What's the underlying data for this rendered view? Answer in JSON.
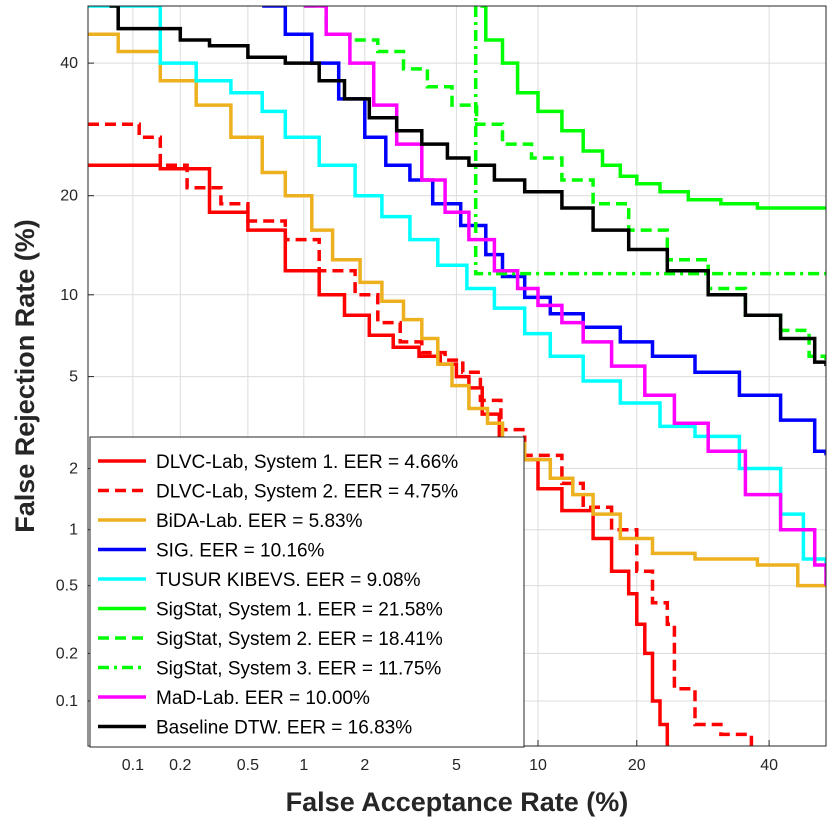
{
  "chart_data": {
    "type": "line",
    "title": "",
    "xlabel": "False Acceptance Rate (%)",
    "ylabel": "False Rejection Rate (%)",
    "xscale": "probit",
    "yscale": "probit",
    "xlim": [
      0.05,
      50
    ],
    "ylim": [
      0.05,
      50
    ],
    "x_ticks": [
      0.1,
      0.2,
      0.5,
      1,
      2,
      5,
      10,
      20,
      40
    ],
    "y_ticks": [
      0.1,
      0.2,
      0.5,
      1,
      2,
      5,
      10,
      20,
      40
    ],
    "x_tick_labels": [
      "0.1",
      "0.2",
      "0.5",
      "1",
      "2",
      "5",
      "10",
      "20",
      "40"
    ],
    "y_tick_labels": [
      "0.1",
      "0.2",
      "0.5",
      "1",
      "2",
      "5",
      "10",
      "20",
      "40"
    ],
    "grid": true,
    "legend_position": "bottom-left",
    "series": [
      {
        "name": "DLVC-Lab, System 1. EER = 4.66%",
        "color": "#ff0000",
        "dash": "solid",
        "x": [
          0.05,
          0.08,
          0.15,
          0.3,
          0.5,
          0.8,
          1.2,
          1.6,
          2.1,
          2.7,
          3.5,
          4.3,
          5.0,
          5.6,
          6.3,
          7.3,
          8.6,
          10,
          12,
          15,
          17,
          19,
          20,
          21,
          22,
          23,
          24
        ],
        "y": [
          24,
          24,
          23.5,
          18,
          16,
          12,
          10,
          8.5,
          7.2,
          6.5,
          6.0,
          5.6,
          5.0,
          4.5,
          3.5,
          2.7,
          2.2,
          1.6,
          1.25,
          0.9,
          0.6,
          0.45,
          0.3,
          0.2,
          0.1,
          0.07,
          0.05
        ]
      },
      {
        "name": "DLVC-Lab, System 2. EER = 4.75%",
        "color": "#ff0000",
        "dash": "dashed",
        "x": [
          0.05,
          0.08,
          0.11,
          0.15,
          0.22,
          0.35,
          0.5,
          0.8,
          1.2,
          1.8,
          2.3,
          2.9,
          3.6,
          4.5,
          5.3,
          6.2,
          7.4,
          9,
          12,
          14,
          17,
          20,
          22,
          24,
          25,
          28,
          32,
          37
        ],
        "y": [
          30,
          30,
          28,
          24,
          21,
          19,
          17,
          15,
          12,
          10,
          8,
          6.8,
          6.2,
          5.8,
          5.2,
          4.0,
          3.0,
          2.3,
          1.7,
          1.3,
          1.0,
          0.6,
          0.4,
          0.3,
          0.12,
          0.07,
          0.06,
          0.05
        ]
      },
      {
        "name": "BiDA-Lab. EER = 5.83%",
        "color": "#edb120",
        "dash": "solid",
        "x": [
          0.05,
          0.08,
          0.15,
          0.25,
          0.4,
          0.6,
          0.8,
          1.1,
          1.4,
          1.9,
          2.4,
          3.0,
          3.6,
          4.2,
          4.8,
          5.6,
          6.6,
          7.5,
          9,
          11,
          13,
          15,
          18,
          22,
          28,
          38,
          45,
          50
        ],
        "y": [
          45,
          42,
          37,
          33,
          28,
          23,
          20,
          16,
          13,
          11,
          9.5,
          8.2,
          7.0,
          5.6,
          4.6,
          3.7,
          3.2,
          2.6,
          2.2,
          1.8,
          1.5,
          1.2,
          0.9,
          0.75,
          0.7,
          0.65,
          0.5,
          0.5
        ]
      },
      {
        "name": "SIG. EER = 10.16%",
        "color": "#0000ff",
        "dash": "solid",
        "x": [
          0.6,
          0.8,
          1.1,
          1.5,
          2.0,
          2.5,
          3.2,
          4.0,
          5.2,
          6.5,
          7.5,
          9,
          11,
          14,
          18,
          22,
          28,
          35,
          42,
          48,
          50
        ],
        "y": [
          50,
          45,
          40,
          34,
          28,
          24,
          22,
          19,
          16.5,
          13.5,
          11.5,
          9.8,
          8.6,
          7.7,
          6.8,
          6.0,
          5.2,
          4.2,
          3.3,
          2.4,
          2.3
        ]
      },
      {
        "name": "TUSUR KIBEVS. EER = 9.08%",
        "color": "#00ffff",
        "dash": "solid",
        "x": [
          0.05,
          0.08,
          0.1,
          0.15,
          0.25,
          0.4,
          0.6,
          0.8,
          1.2,
          1.8,
          2.4,
          3.2,
          4.2,
          5.5,
          7.0,
          9,
          11,
          14,
          18,
          23,
          28,
          35,
          42,
          46,
          50
        ],
        "y": [
          50,
          50,
          50,
          40,
          37,
          35,
          32,
          28,
          24,
          20,
          17.5,
          15,
          12.5,
          10.5,
          9.0,
          7.3,
          6.0,
          4.8,
          3.9,
          3.1,
          2.8,
          2.0,
          1.2,
          0.7,
          0.6
        ]
      },
      {
        "name": "SigStat, System 1. EER = 21.58%",
        "color": "#00ff00",
        "dash": "solid",
        "x": [
          6.2,
          6.5,
          7.5,
          8.5,
          10,
          12,
          14,
          16,
          18,
          20,
          23,
          27,
          32,
          38,
          44,
          50
        ],
        "y": [
          50,
          44,
          40,
          35,
          32,
          29,
          26,
          24,
          22.5,
          21.5,
          20.5,
          19.5,
          19,
          18.5,
          18.5,
          18.5
        ]
      },
      {
        "name": "SigStat, System 2. EER = 18.41%",
        "color": "#00ff00",
        "dash": "dashed",
        "x": [
          1.0,
          1.3,
          1.7,
          2.3,
          3.0,
          3.8,
          4.8,
          6.0,
          7.5,
          9.5,
          12,
          15,
          19,
          24,
          30,
          36,
          42,
          47,
          50
        ],
        "y": [
          50,
          45,
          44,
          42,
          39,
          36,
          33,
          30,
          27,
          25,
          22,
          19,
          16,
          13,
          10.5,
          8.5,
          7.5,
          6,
          5.8
        ]
      },
      {
        "name": "SigStat, System 3. EER = 11.75%",
        "color": "#00ff00",
        "dash": "dashdot",
        "x": [
          5.95,
          5.95,
          5.95,
          6.0,
          8,
          12,
          20,
          30,
          40,
          50
        ],
        "y": [
          50,
          25,
          11.75,
          11.75,
          11.75,
          11.75,
          11.75,
          11.75,
          11.75,
          11.75
        ]
      },
      {
        "name": "MaD-Lab. EER = 10.00%",
        "color": "#ff00ff",
        "dash": "solid",
        "x": [
          1.0,
          1.3,
          1.7,
          2.2,
          2.8,
          3.6,
          4.5,
          5.6,
          7.0,
          8.5,
          10,
          12,
          14,
          17,
          21,
          25,
          30,
          36,
          42,
          48,
          50
        ],
        "y": [
          50,
          45,
          40,
          33,
          27,
          22,
          18,
          15,
          12,
          10.5,
          9.2,
          8.0,
          6.8,
          5.5,
          4.2,
          3.2,
          2.4,
          1.5,
          1.0,
          0.65,
          0.5
        ]
      },
      {
        "name": "Baseline DTW. EER = 16.83%",
        "color": "#000000",
        "dash": "solid",
        "x": [
          0.07,
          0.08,
          0.12,
          0.2,
          0.3,
          0.5,
          0.8,
          1.2,
          1.6,
          2.1,
          2.8,
          3.6,
          4.6,
          5.6,
          7.0,
          9,
          12,
          15,
          19,
          24,
          30,
          36,
          42,
          48,
          50
        ],
        "y": [
          50,
          46,
          46,
          44,
          43,
          41,
          40,
          37,
          34,
          31,
          29,
          27,
          25,
          24,
          22,
          20.5,
          18.5,
          16,
          14,
          12,
          10,
          8.5,
          7,
          5.7,
          5.5
        ]
      }
    ]
  }
}
